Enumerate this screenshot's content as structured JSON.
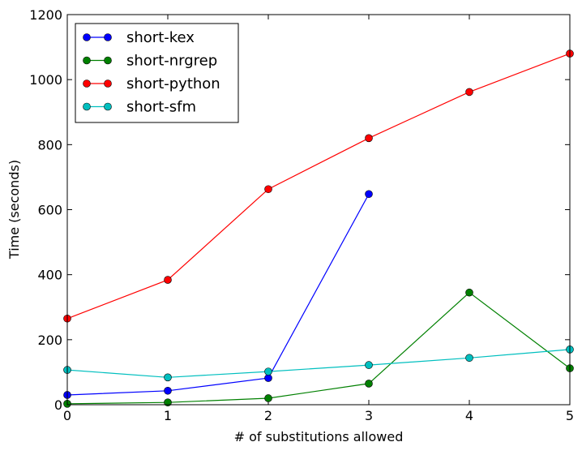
{
  "chart_data": {
    "type": "line",
    "title": "",
    "xlabel": "# of substitutions allowed",
    "ylabel": "Time (seconds)",
    "xlim": [
      0,
      5
    ],
    "ylim": [
      0,
      1200
    ],
    "xticks": [
      "0",
      "1",
      "2",
      "3",
      "4",
      "5"
    ],
    "yticks": [
      "0",
      "200",
      "400",
      "600",
      "800",
      "1000",
      "1200"
    ],
    "grid": false,
    "legend": "top-left",
    "series": [
      {
        "name": "short-kex",
        "color": "#0000ff",
        "points": [
          [
            0,
            30
          ],
          [
            1,
            43
          ],
          [
            2,
            82
          ],
          [
            3,
            648
          ]
        ]
      },
      {
        "name": "short-nrgrep",
        "color": "#008000",
        "points": [
          [
            0,
            3
          ],
          [
            1,
            7
          ],
          [
            2,
            20
          ],
          [
            3,
            65
          ],
          [
            4,
            345
          ],
          [
            5,
            112
          ]
        ]
      },
      {
        "name": "short-python",
        "color": "#ff0000",
        "points": [
          [
            0,
            265
          ],
          [
            1,
            384
          ],
          [
            2,
            663
          ],
          [
            3,
            820
          ],
          [
            4,
            962
          ],
          [
            5,
            1080
          ]
        ]
      },
      {
        "name": "short-sfm",
        "color": "#00bfbf",
        "points": [
          [
            0,
            107
          ],
          [
            1,
            84
          ],
          [
            2,
            102
          ],
          [
            3,
            122
          ],
          [
            4,
            144
          ],
          [
            5,
            170
          ]
        ]
      }
    ]
  }
}
